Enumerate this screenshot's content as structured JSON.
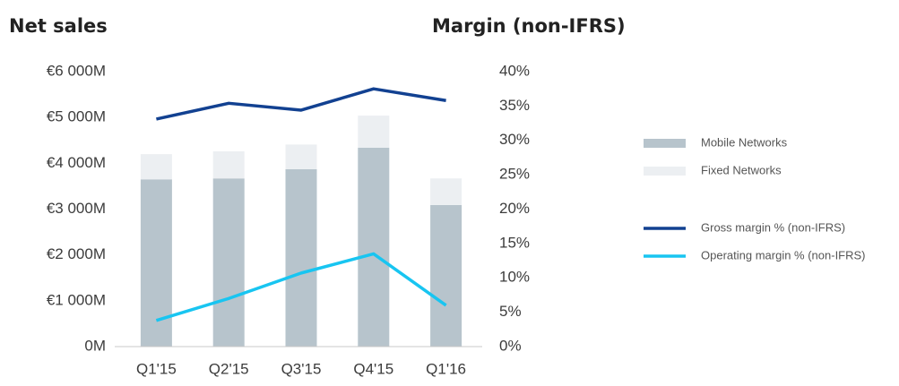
{
  "chart_data": {
    "type": "bar",
    "title": "Net sales",
    "y2_title": "Margin (non-IFRS)",
    "categories": [
      "Q1'15",
      "Q2'15",
      "Q3'15",
      "Q4'15",
      "Q1'16"
    ],
    "stacked": true,
    "series": [
      {
        "name": "Mobile Networks",
        "type": "bar",
        "color": "#b7c4cc",
        "values": [
          3650,
          3670,
          3870,
          4340,
          3090
        ]
      },
      {
        "name": "Fixed Networks",
        "type": "bar",
        "color": "#eceff2",
        "values": [
          550,
          590,
          540,
          700,
          580
        ]
      },
      {
        "name": "Gross margin % (non-IFRS)",
        "type": "line",
        "axis": "y2",
        "color": "#124191",
        "values": [
          33.1,
          35.4,
          34.4,
          37.5,
          35.8
        ]
      },
      {
        "name": "Operating margin % (non-IFRS)",
        "type": "line",
        "axis": "y2",
        "color": "#18c5f1",
        "values": [
          3.8,
          7.0,
          10.7,
          13.5,
          6.0
        ]
      }
    ],
    "ylim": [
      0,
      6000
    ],
    "yticks": [
      {
        "value": 0,
        "label": "0M"
      },
      {
        "value": 1000,
        "label": "€1 000M"
      },
      {
        "value": 2000,
        "label": "€2 000M"
      },
      {
        "value": 3000,
        "label": "€3 000M"
      },
      {
        "value": 4000,
        "label": "€4 000M"
      },
      {
        "value": 5000,
        "label": "€5 000M"
      },
      {
        "value": 6000,
        "label": "€6 000M"
      }
    ],
    "y2lim": [
      0,
      40
    ],
    "y2ticks": [
      {
        "value": 0,
        "label": "0%"
      },
      {
        "value": 5,
        "label": "5%"
      },
      {
        "value": 10,
        "label": "10%"
      },
      {
        "value": 15,
        "label": "15%"
      },
      {
        "value": 20,
        "label": "20%"
      },
      {
        "value": 25,
        "label": "25%"
      },
      {
        "value": 30,
        "label": "30%"
      },
      {
        "value": 35,
        "label": "35%"
      },
      {
        "value": 40,
        "label": "40%"
      }
    ],
    "legend": "right"
  }
}
